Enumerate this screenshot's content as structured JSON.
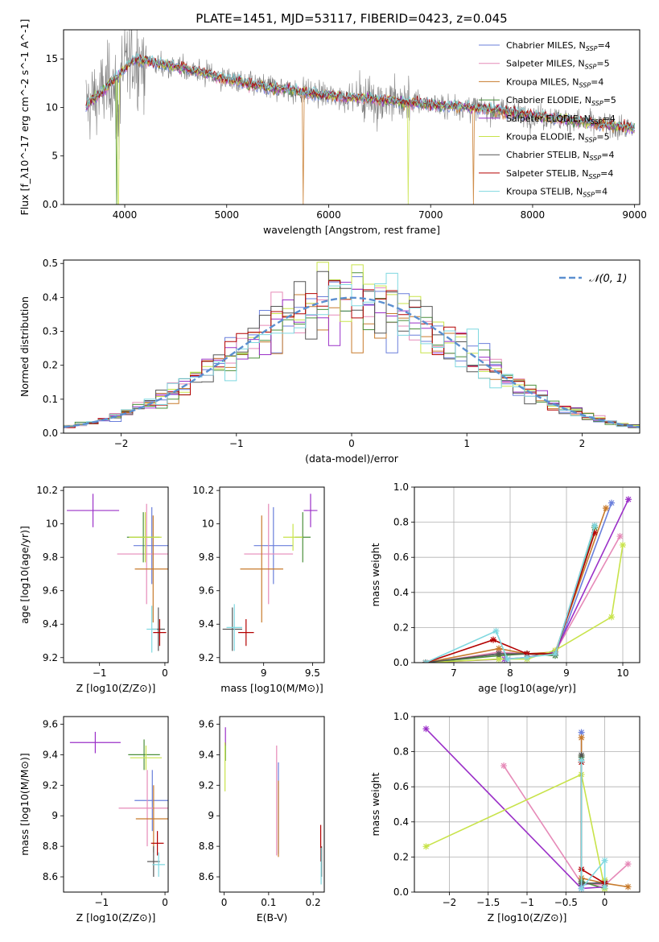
{
  "title": "PLATE=1451, MJD=53117, FIBERID=0423, z=0.045",
  "colors": [
    "#6a7fdb",
    "#e68ab8",
    "#c77a2b",
    "#4a8f3a",
    "#9b30c8",
    "#c8e34a",
    "#555555",
    "#b40000",
    "#7fd8e0"
  ],
  "legend_labels": [
    "Chabrier MILES, N_SSP=4",
    "Salpeter MILES, N_SSP=5",
    "Kroupa MILES, N_SSP=4",
    "Chabrier ELODIE, N_SSP=5",
    "Salpeter ELODIE, N_SSP=4",
    "Kroupa ELODIE, N_SSP=5",
    "Chabrier STELIB, N_SSP=4",
    "Salpeter STELIB, N_SSP=4",
    "Kroupa STELIB, N_SSP=4"
  ],
  "chart_data": [
    {
      "id": "spectrum",
      "type": "line",
      "xlabel": "wavelength [Angstrom, rest frame]",
      "ylabel": "Flux [f_λ10^-17 erg cm^-2 s^-1 A^-1]",
      "xlim": [
        3400,
        9050
      ],
      "ylim": [
        0,
        18
      ],
      "xticks": [
        4000,
        5000,
        6000,
        7000,
        8000,
        9000
      ],
      "yticks": [
        0,
        5,
        10,
        15
      ],
      "continuum": [
        [
          3620,
          10.2
        ],
        [
          3800,
          11.8
        ],
        [
          3950,
          13.5
        ],
        [
          4100,
          15
        ],
        [
          4300,
          14.6
        ],
        [
          4600,
          14
        ],
        [
          4900,
          13.2
        ],
        [
          5200,
          12.4
        ],
        [
          5600,
          11.8
        ],
        [
          6000,
          11.2
        ],
        [
          6500,
          10.8
        ],
        [
          7000,
          10.3
        ],
        [
          7500,
          9.9
        ],
        [
          8000,
          9.2
        ],
        [
          8500,
          8.5
        ],
        [
          9000,
          7.8
        ]
      ],
      "dips": [
        {
          "x": 3920,
          "series": 3
        },
        {
          "x": 3935,
          "series": 5
        },
        {
          "x": 5750,
          "series": 2
        },
        {
          "x": 6780,
          "series": 5
        },
        {
          "x": 7420,
          "series": 2
        }
      ]
    },
    {
      "id": "residuals",
      "type": "histogram",
      "xlabel": "(data-model)/error",
      "ylabel": "Normed distribution",
      "xlim": [
        -2.5,
        2.5
      ],
      "ylim": [
        0,
        0.51
      ],
      "xticks": [
        -2,
        -1,
        0,
        1,
        2
      ],
      "yticks": [
        0.0,
        0.1,
        0.2,
        0.3,
        0.4,
        0.5
      ],
      "legend": "𝒩(0, 1)",
      "bin_width": 0.1
    },
    {
      "id": "z-age",
      "type": "errorbar",
      "xlabel": "Z [log10(Z/Z⊙)]",
      "ylabel": "age  [log10(age/yr)]",
      "xlim": [
        -1.55,
        0.05
      ],
      "ylim": [
        9.17,
        10.22
      ],
      "xticks": [
        -1,
        0
      ],
      "yticks": [
        9.2,
        9.4,
        9.6,
        9.8,
        10.0,
        10.2
      ],
      "grid": false,
      "points": [
        {
          "s": 0,
          "x": -0.2,
          "xe": 0.28,
          "y": 9.87,
          "ye": 0.23
        },
        {
          "s": 1,
          "x": -0.28,
          "xe": 0.45,
          "y": 9.82,
          "ye": 0.3
        },
        {
          "s": 2,
          "x": -0.18,
          "xe": 0.28,
          "y": 9.73,
          "ye": 0.32
        },
        {
          "s": 3,
          "x": -0.33,
          "xe": 0.25,
          "y": 9.92,
          "ye": 0.15
        },
        {
          "s": 4,
          "x": -1.1,
          "xe": 0.4,
          "y": 10.08,
          "ye": 0.1
        },
        {
          "s": 5,
          "x": -0.3,
          "xe": 0.25,
          "y": 9.92,
          "ye": 0.15
        },
        {
          "s": 6,
          "x": -0.1,
          "xe": 0.1,
          "y": 9.37,
          "ye": 0.13
        },
        {
          "s": 7,
          "x": -0.08,
          "xe": 0.1,
          "y": 9.35,
          "ye": 0.08
        },
        {
          "s": 8,
          "x": -0.2,
          "xe": 0.08,
          "y": 9.37,
          "ye": 0.14
        }
      ]
    },
    {
      "id": "mass-age",
      "type": "errorbar",
      "xlabel": "mass [log10(M/M⊙)]",
      "ylabel": "",
      "xlim": [
        8.55,
        9.62
      ],
      "ylim": [
        9.17,
        10.22
      ],
      "xticks": [
        9.0,
        9.5
      ],
      "yticks": [
        9.2,
        9.4,
        9.6,
        9.8,
        10.0,
        10.2
      ],
      "grid": false,
      "points": [
        {
          "s": 0,
          "x": 9.1,
          "xe": 0.2,
          "y": 9.87,
          "ye": 0.23
        },
        {
          "s": 1,
          "x": 9.05,
          "xe": 0.25,
          "y": 9.82,
          "ye": 0.3
        },
        {
          "s": 2,
          "x": 8.98,
          "xe": 0.22,
          "y": 9.73,
          "ye": 0.32
        },
        {
          "s": 3,
          "x": 9.4,
          "xe": 0.08,
          "y": 9.92,
          "ye": 0.15
        },
        {
          "s": 4,
          "x": 9.48,
          "xe": 0.07,
          "y": 10.08,
          "ye": 0.1
        },
        {
          "s": 5,
          "x": 9.3,
          "xe": 0.1,
          "y": 9.92,
          "ye": 0.08
        },
        {
          "s": 6,
          "x": 8.68,
          "xe": 0.1,
          "y": 9.37,
          "ye": 0.13
        },
        {
          "s": 7,
          "x": 8.82,
          "xe": 0.08,
          "y": 9.35,
          "ye": 0.08
        },
        {
          "s": 8,
          "x": 8.7,
          "xe": 0.08,
          "y": 9.38,
          "ye": 0.14
        }
      ]
    },
    {
      "id": "weight-age",
      "type": "line",
      "xlabel": "age  [log10(age/yr)]",
      "ylabel": "mass weight",
      "xlim": [
        6.3,
        10.3
      ],
      "ylim": [
        0,
        1
      ],
      "xticks": [
        7,
        8,
        9,
        10
      ],
      "yticks": [
        0.0,
        0.2,
        0.4,
        0.6,
        0.8,
        1.0
      ],
      "grid": true,
      "series": [
        {
          "s": 0,
          "x": [
            6.5,
            7.8,
            8.3,
            8.8,
            9.8
          ],
          "y": [
            0.0,
            0.05,
            0.05,
            0.04,
            0.91
          ]
        },
        {
          "s": 1,
          "x": [
            6.6,
            7.8,
            8.3,
            8.8,
            9.95
          ],
          "y": [
            0.0,
            0.06,
            0.05,
            0.06,
            0.72
          ]
        },
        {
          "s": 2,
          "x": [
            6.5,
            7.8,
            8.3,
            8.8,
            9.7
          ],
          "y": [
            0.0,
            0.08,
            0.05,
            0.06,
            0.88
          ]
        },
        {
          "s": 3,
          "x": [
            6.5,
            7.8,
            8.3,
            8.8,
            9.5
          ],
          "y": [
            0.0,
            0.04,
            0.05,
            0.04,
            0.77
          ]
        },
        {
          "s": 4,
          "x": [
            6.5,
            7.9,
            8.3,
            8.8,
            10.1
          ],
          "y": [
            0.0,
            0.02,
            0.03,
            0.06,
            0.93
          ]
        },
        {
          "s": 5,
          "x": [
            6.5,
            7.8,
            8.3,
            8.8,
            9.8,
            10.0
          ],
          "y": [
            0.0,
            0.02,
            0.02,
            0.07,
            0.26,
            0.67
          ]
        },
        {
          "s": 6,
          "x": [
            6.5,
            7.8,
            8.3,
            8.8,
            9.5
          ],
          "y": [
            0.0,
            0.05,
            0.05,
            0.05,
            0.78
          ]
        },
        {
          "s": 7,
          "x": [
            6.5,
            7.7,
            8.3,
            8.8,
            9.5
          ],
          "y": [
            0.0,
            0.13,
            0.05,
            0.05,
            0.74
          ]
        },
        {
          "s": 8,
          "x": [
            6.5,
            7.75,
            7.95,
            8.3,
            8.8,
            9.5
          ],
          "y": [
            0.0,
            0.18,
            0.02,
            0.03,
            0.05,
            0.78
          ]
        }
      ]
    },
    {
      "id": "z-mass",
      "type": "errorbar",
      "xlabel": "Z [log10(Z/Z⊙)]",
      "ylabel": "mass [log10(M/M⊙)]",
      "xlim": [
        -1.6,
        0.05
      ],
      "ylim": [
        8.5,
        9.65
      ],
      "xticks": [
        -1,
        0
      ],
      "yticks": [
        8.6,
        8.8,
        9.0,
        9.2,
        9.4,
        9.6
      ],
      "grid": false,
      "points": [
        {
          "s": 0,
          "x": -0.2,
          "xe": 0.28,
          "y": 9.1,
          "ye": 0.2
        },
        {
          "s": 1,
          "x": -0.28,
          "xe": 0.45,
          "y": 9.05,
          "ye": 0.25
        },
        {
          "s": 2,
          "x": -0.18,
          "xe": 0.28,
          "y": 8.98,
          "ye": 0.22
        },
        {
          "s": 3,
          "x": -0.33,
          "xe": 0.25,
          "y": 9.4,
          "ye": 0.1
        },
        {
          "s": 4,
          "x": -1.1,
          "xe": 0.4,
          "y": 9.48,
          "ye": 0.07
        },
        {
          "s": 5,
          "x": -0.3,
          "xe": 0.25,
          "y": 9.38,
          "ye": 0.08
        },
        {
          "s": 6,
          "x": -0.18,
          "xe": 0.1,
          "y": 8.7,
          "ye": 0.1
        },
        {
          "s": 7,
          "x": -0.12,
          "xe": 0.1,
          "y": 8.82,
          "ye": 0.08
        },
        {
          "s": 8,
          "x": -0.1,
          "xe": 0.1,
          "y": 8.68,
          "ye": 0.08
        }
      ]
    },
    {
      "id": "ebv-mass",
      "type": "errorbar",
      "xlabel": "E(B-V)",
      "ylabel": "",
      "xlim": [
        -0.01,
        0.225
      ],
      "ylim": [
        8.5,
        9.65
      ],
      "xticks": [
        0.0,
        0.1,
        0.2
      ],
      "yticks": [
        8.6,
        8.8,
        9.0,
        9.2,
        9.4,
        9.6
      ],
      "grid": false,
      "points": [
        {
          "s": 0,
          "x": 0.122,
          "xe": 0,
          "y": 9.05,
          "ye": 0.3
        },
        {
          "s": 1,
          "x": 0.118,
          "xe": 0,
          "y": 9.1,
          "ye": 0.36
        },
        {
          "s": 2,
          "x": 0.122,
          "xe": 0,
          "y": 8.98,
          "ye": 0.25
        },
        {
          "s": 3,
          "x": 0.003,
          "xe": 0,
          "y": 9.42,
          "ye": 0.06
        },
        {
          "s": 4,
          "x": 0.003,
          "xe": 0,
          "y": 9.52,
          "ye": 0.06
        },
        {
          "s": 5,
          "x": 0.002,
          "xe": 0,
          "y": 9.32,
          "ye": 0.16
        },
        {
          "s": 6,
          "x": 0.219,
          "xe": 0,
          "y": 8.7,
          "ye": 0.1
        },
        {
          "s": 7,
          "x": 0.217,
          "xe": 0,
          "y": 8.82,
          "ye": 0.12
        },
        {
          "s": 8,
          "x": 0.218,
          "xe": 0,
          "y": 8.67,
          "ye": 0.12
        }
      ]
    },
    {
      "id": "weight-z",
      "type": "line",
      "xlabel": "Z [log10(Z/Z⊙)]",
      "ylabel": "mass weight",
      "xlim": [
        -2.45,
        0.45
      ],
      "ylim": [
        0,
        1
      ],
      "xticks": [
        -2.0,
        -1.5,
        -1.0,
        -0.5,
        0.0
      ],
      "yticks": [
        0.0,
        0.2,
        0.4,
        0.6,
        0.8,
        1.0
      ],
      "grid": true,
      "series": [
        {
          "s": 0,
          "x": [
            -0.3,
            -0.3,
            0.0,
            0.0
          ],
          "y": [
            0.91,
            0.04,
            0.06,
            0.05
          ]
        },
        {
          "s": 1,
          "x": [
            -1.3,
            -0.3,
            0.0,
            0.3
          ],
          "y": [
            0.72,
            0.05,
            0.04,
            0.16
          ]
        },
        {
          "s": 2,
          "x": [
            -0.3,
            -0.3,
            0.0,
            0.3
          ],
          "y": [
            0.88,
            0.08,
            0.05,
            0.03
          ]
        },
        {
          "s": 3,
          "x": [
            -0.3,
            -0.3,
            0.0,
            0.0
          ],
          "y": [
            0.77,
            0.06,
            0.02,
            0.05
          ]
        },
        {
          "s": 4,
          "x": [
            -2.3,
            -0.3,
            0.0,
            0.0
          ],
          "y": [
            0.93,
            0.02,
            0.03,
            0.06
          ]
        },
        {
          "s": 5,
          "x": [
            -2.3,
            -0.3,
            0.0,
            0.0
          ],
          "y": [
            0.26,
            0.67,
            0.02,
            0.07
          ]
        },
        {
          "s": 6,
          "x": [
            -0.3,
            -0.3,
            0.0,
            0.0
          ],
          "y": [
            0.78,
            0.05,
            0.05,
            0.05
          ]
        },
        {
          "s": 7,
          "x": [
            -0.3,
            -0.3,
            0.0,
            0.0
          ],
          "y": [
            0.74,
            0.13,
            0.05,
            0.05
          ]
        },
        {
          "s": 8,
          "x": [
            -0.3,
            -0.3,
            0.0,
            0.0
          ],
          "y": [
            0.75,
            0.02,
            0.18,
            0.03
          ]
        }
      ]
    }
  ]
}
